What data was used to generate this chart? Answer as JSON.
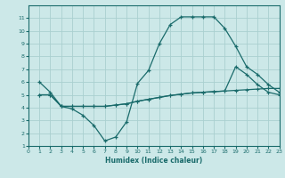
{
  "bg_color": "#cce8e8",
  "grid_color": "#aad0d0",
  "line_color": "#1a6b6b",
  "xlabel": "Humidex (Indice chaleur)",
  "xlim": [
    0,
    23
  ],
  "ylim": [
    1,
    12
  ],
  "xticks": [
    0,
    1,
    2,
    3,
    4,
    5,
    6,
    7,
    8,
    9,
    10,
    11,
    12,
    13,
    14,
    15,
    16,
    17,
    18,
    19,
    20,
    21,
    22,
    23
  ],
  "yticks": [
    1,
    2,
    3,
    4,
    5,
    6,
    7,
    8,
    9,
    10,
    11
  ],
  "line1_x": [
    1,
    2,
    3,
    4,
    5,
    6,
    7,
    8,
    9,
    10,
    11,
    12,
    13,
    14,
    15,
    16,
    17,
    18,
    19,
    20,
    21,
    22,
    23
  ],
  "line1_y": [
    6.0,
    5.2,
    4.1,
    3.9,
    3.4,
    2.6,
    1.4,
    1.7,
    2.9,
    5.9,
    6.9,
    9.0,
    10.5,
    11.1,
    11.1,
    11.1,
    11.1,
    10.2,
    8.8,
    7.2,
    6.6,
    5.8,
    5.2
  ],
  "line2_x": [
    1,
    2,
    3,
    4,
    5,
    6,
    7,
    8,
    9,
    10,
    11,
    12,
    13,
    14,
    15,
    16,
    17,
    18,
    19,
    20,
    21,
    22,
    23
  ],
  "line2_y": [
    5.0,
    5.0,
    4.1,
    4.1,
    4.1,
    4.1,
    4.1,
    4.2,
    4.3,
    4.5,
    4.65,
    4.8,
    4.95,
    5.05,
    5.15,
    5.2,
    5.25,
    5.3,
    5.35,
    5.4,
    5.45,
    5.5,
    5.5
  ],
  "line3_x": [
    1,
    2,
    3,
    4,
    5,
    6,
    7,
    8,
    9,
    10,
    11,
    12,
    13,
    14,
    15,
    16,
    17,
    18,
    19,
    20,
    21,
    22,
    23
  ],
  "line3_y": [
    5.0,
    5.0,
    4.1,
    4.1,
    4.1,
    4.1,
    4.1,
    4.2,
    4.3,
    4.5,
    4.65,
    4.8,
    4.95,
    5.05,
    5.15,
    5.2,
    5.25,
    5.3,
    7.2,
    6.6,
    5.8,
    5.2,
    5.0
  ]
}
